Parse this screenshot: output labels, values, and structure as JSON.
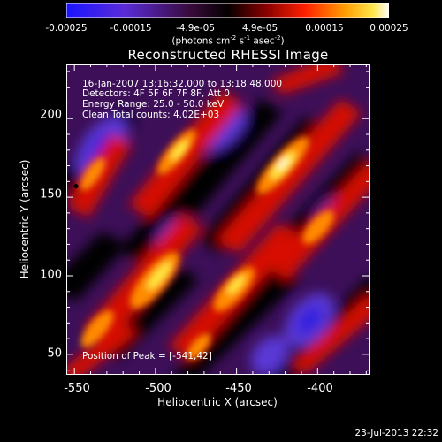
{
  "colorbar": {
    "ticks": [
      "-0.00025",
      "-0.00015",
      "-4.9e-05",
      "4.9e-05",
      "0.00015",
      "0.00025"
    ],
    "units_text": "(photons cm",
    "units_sup1": "-2",
    "units_mid": " s",
    "units_sup2": "-1",
    "units_mid2": " asec",
    "units_sup3": "-2",
    "units_end": ")"
  },
  "title": "Reconstructed RHESSI Image",
  "info": {
    "time_range": "16-Jan-2007 13:16:32.000 to 13:18:48.000",
    "detectors": "Detectors: 4F 5F 6F 7F 8F, Att 0",
    "energy": "Energy Range: 25.0 - 50.0 keV",
    "clean": "Clean     Total counts: 4.02E+03",
    "peak": "Position of Peak = [-541,42]"
  },
  "footer": "23-Jul-2013 22:32",
  "chart_data": {
    "type": "heatmap",
    "title": "Reconstructed RHESSI Image",
    "xlabel": "Heliocentric X (arcsec)",
    "ylabel": "Heliocentric Y (arcsec)",
    "xlim": [
      -555,
      -368
    ],
    "ylim": [
      37,
      235
    ],
    "x_ticks": [
      -550,
      -500,
      -450,
      -400
    ],
    "y_ticks": [
      50,
      100,
      150,
      200
    ],
    "x_tick_labels": [
      "-550",
      "-500",
      "-450",
      "-400"
    ],
    "y_tick_labels": [
      "50",
      "100",
      "150",
      "200"
    ],
    "color_range": [
      -0.00025,
      0.00025
    ],
    "colormap": "blue-purple-red-orange-yellow-white",
    "peak_position": [
      -541,
      42
    ],
    "marker_position": [
      -549,
      157
    ],
    "grid": false
  }
}
